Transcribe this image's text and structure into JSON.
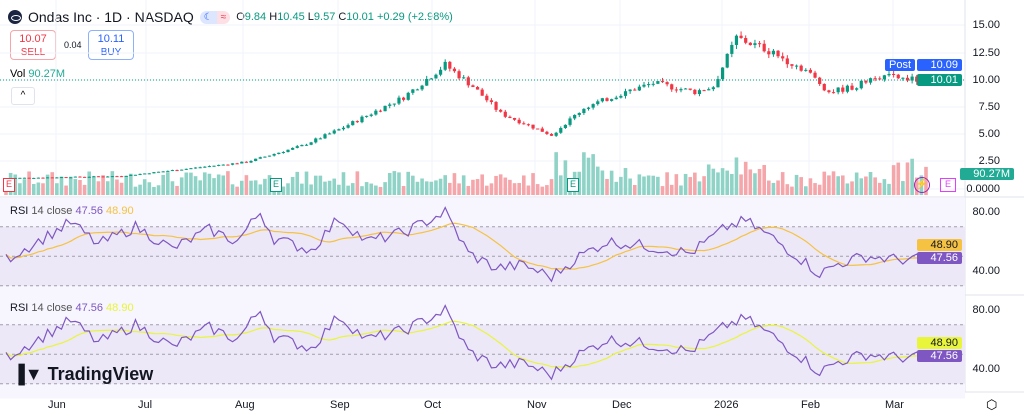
{
  "header": {
    "symbol": "Ondas Inc · 1D · NASDAQ",
    "open_label": "O",
    "open": "9.84",
    "high_label": "H",
    "high": "10.45",
    "low_label": "L",
    "low": "9.57",
    "close_label": "C",
    "close": "10.01",
    "change": "+0.29 (+2.98%)"
  },
  "trade": {
    "sell_price": "10.07",
    "sell_label": "SELL",
    "spread": "0.04",
    "buy_price": "10.11",
    "buy_label": "BUY"
  },
  "volume": {
    "label": "Vol",
    "value": "90.27M"
  },
  "price_axis": [
    "15.00",
    "12.50",
    "10.00",
    "7.50",
    "5.00",
    "2.50",
    "0.0000"
  ],
  "price_tags": {
    "post_label": "Post",
    "post": "10.09",
    "last": "10.01",
    "volume": "90.27M"
  },
  "rsi_panes": [
    {
      "label": "RSI",
      "params": "14 close",
      "rsi": "47.56",
      "ma": "48.90",
      "axis": [
        "80.00",
        "40.00"
      ],
      "ma_color": "#f5c242"
    },
    {
      "label": "RSI",
      "params": "14 close",
      "rsi": "47.56",
      "ma": "48.90",
      "axis": [
        "80.00",
        "40.00"
      ],
      "ma_color": "#e8f53a"
    }
  ],
  "months": [
    "Jun",
    "Jul",
    "Aug",
    "Sep",
    "Oct",
    "Nov",
    "Dec",
    "2026",
    "Feb",
    "Mar"
  ],
  "brand": "TradingView",
  "colors": {
    "up": "#089981",
    "down": "#f23645",
    "rsi": "#7e57c2",
    "accent": "#2962ff"
  },
  "chart_data": {
    "type": "candlestick",
    "bars": 200,
    "price_keypoints": [
      [
        0,
        1.0
      ],
      [
        25,
        1.2
      ],
      [
        52,
        2.5
      ],
      [
        64,
        4
      ],
      [
        72,
        5.5
      ],
      [
        86,
        8.5
      ],
      [
        95,
        11.5
      ],
      [
        101,
        9.5
      ],
      [
        107,
        7
      ],
      [
        118,
        5
      ],
      [
        125,
        7.5
      ],
      [
        134,
        9
      ],
      [
        140,
        9.8
      ],
      [
        149,
        9
      ],
      [
        153,
        9.5
      ],
      [
        158,
        14
      ],
      [
        164,
        13
      ],
      [
        173,
        11
      ],
      [
        178,
        9
      ],
      [
        184,
        9.5
      ],
      [
        188,
        10.5
      ],
      [
        199,
        10.01
      ]
    ],
    "rsi_keypoints": [
      [
        0,
        48
      ],
      [
        8,
        62
      ],
      [
        14,
        73
      ],
      [
        20,
        58
      ],
      [
        28,
        70
      ],
      [
        36,
        55
      ],
      [
        44,
        68
      ],
      [
        50,
        60
      ],
      [
        55,
        80
      ],
      [
        58,
        62
      ],
      [
        66,
        54
      ],
      [
        72,
        76
      ],
      [
        78,
        60
      ],
      [
        86,
        66
      ],
      [
        95,
        80
      ],
      [
        100,
        52
      ],
      [
        106,
        42
      ],
      [
        112,
        44
      ],
      [
        118,
        36
      ],
      [
        124,
        50
      ],
      [
        130,
        60
      ],
      [
        136,
        58
      ],
      [
        142,
        55
      ],
      [
        148,
        52
      ],
      [
        156,
        70
      ],
      [
        160,
        74
      ],
      [
        166,
        62
      ],
      [
        172,
        48
      ],
      [
        176,
        38
      ],
      [
        180,
        45
      ],
      [
        186,
        50
      ],
      [
        192,
        48
      ],
      [
        199,
        47.56
      ]
    ],
    "rsi_range": [
      20,
      90
    ]
  }
}
